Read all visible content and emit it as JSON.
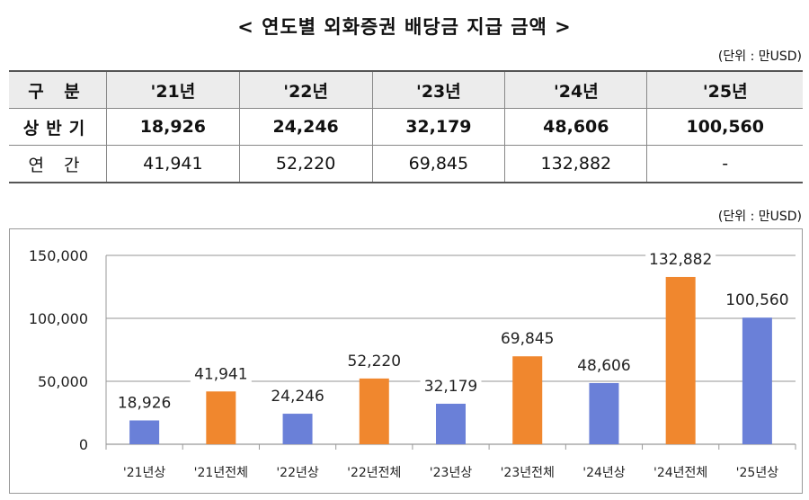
{
  "title": "< 연도별 외화증권 배당금 지급 금액 >",
  "unit_label": "(단위 : 만USD)",
  "table": {
    "headers": [
      "구 분",
      "'21년",
      "'22년",
      "'23년",
      "'24년",
      "'25년"
    ],
    "rows": [
      {
        "label": "상반기",
        "values": [
          "18,926",
          "24,246",
          "32,179",
          "48,606",
          "100,560"
        ]
      },
      {
        "label": "연 간",
        "values": [
          "41,941",
          "52,220",
          "69,845",
          "132,882",
          "-"
        ]
      }
    ]
  },
  "chart_data": {
    "type": "bar",
    "categories": [
      "'21년상",
      "'21년전체",
      "'22년상",
      "'22년전체",
      "'23년상",
      "'23년전체",
      "'24년상",
      "'24년전체",
      "'25년상"
    ],
    "values": [
      18926,
      41941,
      24246,
      52220,
      32179,
      69845,
      48606,
      132882,
      100560
    ],
    "labels": [
      "18,926",
      "41,941",
      "24,246",
      "52,220",
      "32,179",
      "69,845",
      "48,606",
      "132,882",
      "100,560"
    ],
    "bar_colors": [
      "#6a80d8",
      "#f0872e",
      "#6a80d8",
      "#f0872e",
      "#6a80d8",
      "#f0872e",
      "#6a80d8",
      "#f0872e",
      "#6a80d8"
    ],
    "ylim": [
      0,
      150000
    ],
    "yticks": [
      0,
      50000,
      100000,
      150000
    ],
    "ytick_labels": [
      "0",
      "50,000",
      "100,000",
      "150,000"
    ],
    "grid": true,
    "unit": "(단위 : 만USD)"
  }
}
